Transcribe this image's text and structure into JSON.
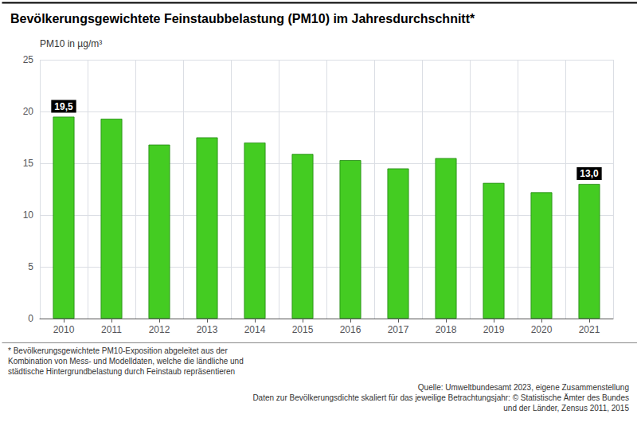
{
  "chart_data": {
    "type": "bar",
    "title": "Bevölkerungsgewichtete Feinstaubbelastung (PM10) im Jahresdurchschnitt*",
    "ylabel": "PM10 in µg/m³",
    "categories": [
      2010,
      2011,
      2012,
      2013,
      2014,
      2015,
      2016,
      2017,
      2018,
      2019,
      2020,
      2021
    ],
    "values": [
      19.5,
      19.3,
      16.8,
      17.5,
      17.0,
      15.9,
      15.3,
      14.5,
      15.5,
      13.1,
      12.2,
      13.0
    ],
    "color": "#44cc22",
    "ylim": [
      0,
      25
    ],
    "yticks": [
      0,
      5,
      10,
      15,
      20,
      25
    ],
    "grid": true,
    "annotations": [
      {
        "category": 2010,
        "value": 19.5,
        "text": "19,5"
      },
      {
        "category": 2021,
        "value": 13.0,
        "text": "13,0"
      }
    ],
    "footnotes": [
      "* Bevölkerungsgewichtete PM10-Exposition abgeleitet aus der\nKombination von Mess- und Modelldaten, welche die ländliche und\nstädtische Hintergrundbelastung durch Feinstaub repräsentieren",
      "Quelle: Umweltbundesamt 2023, eigene Zusammenstellung\nDaten zur Bevölkerungsdichte skaliert für das jeweilige Betrachtungsjahr: © Statistische Ämter des Bundes\nund der Länder, Zensus 2011, 2015"
    ]
  }
}
